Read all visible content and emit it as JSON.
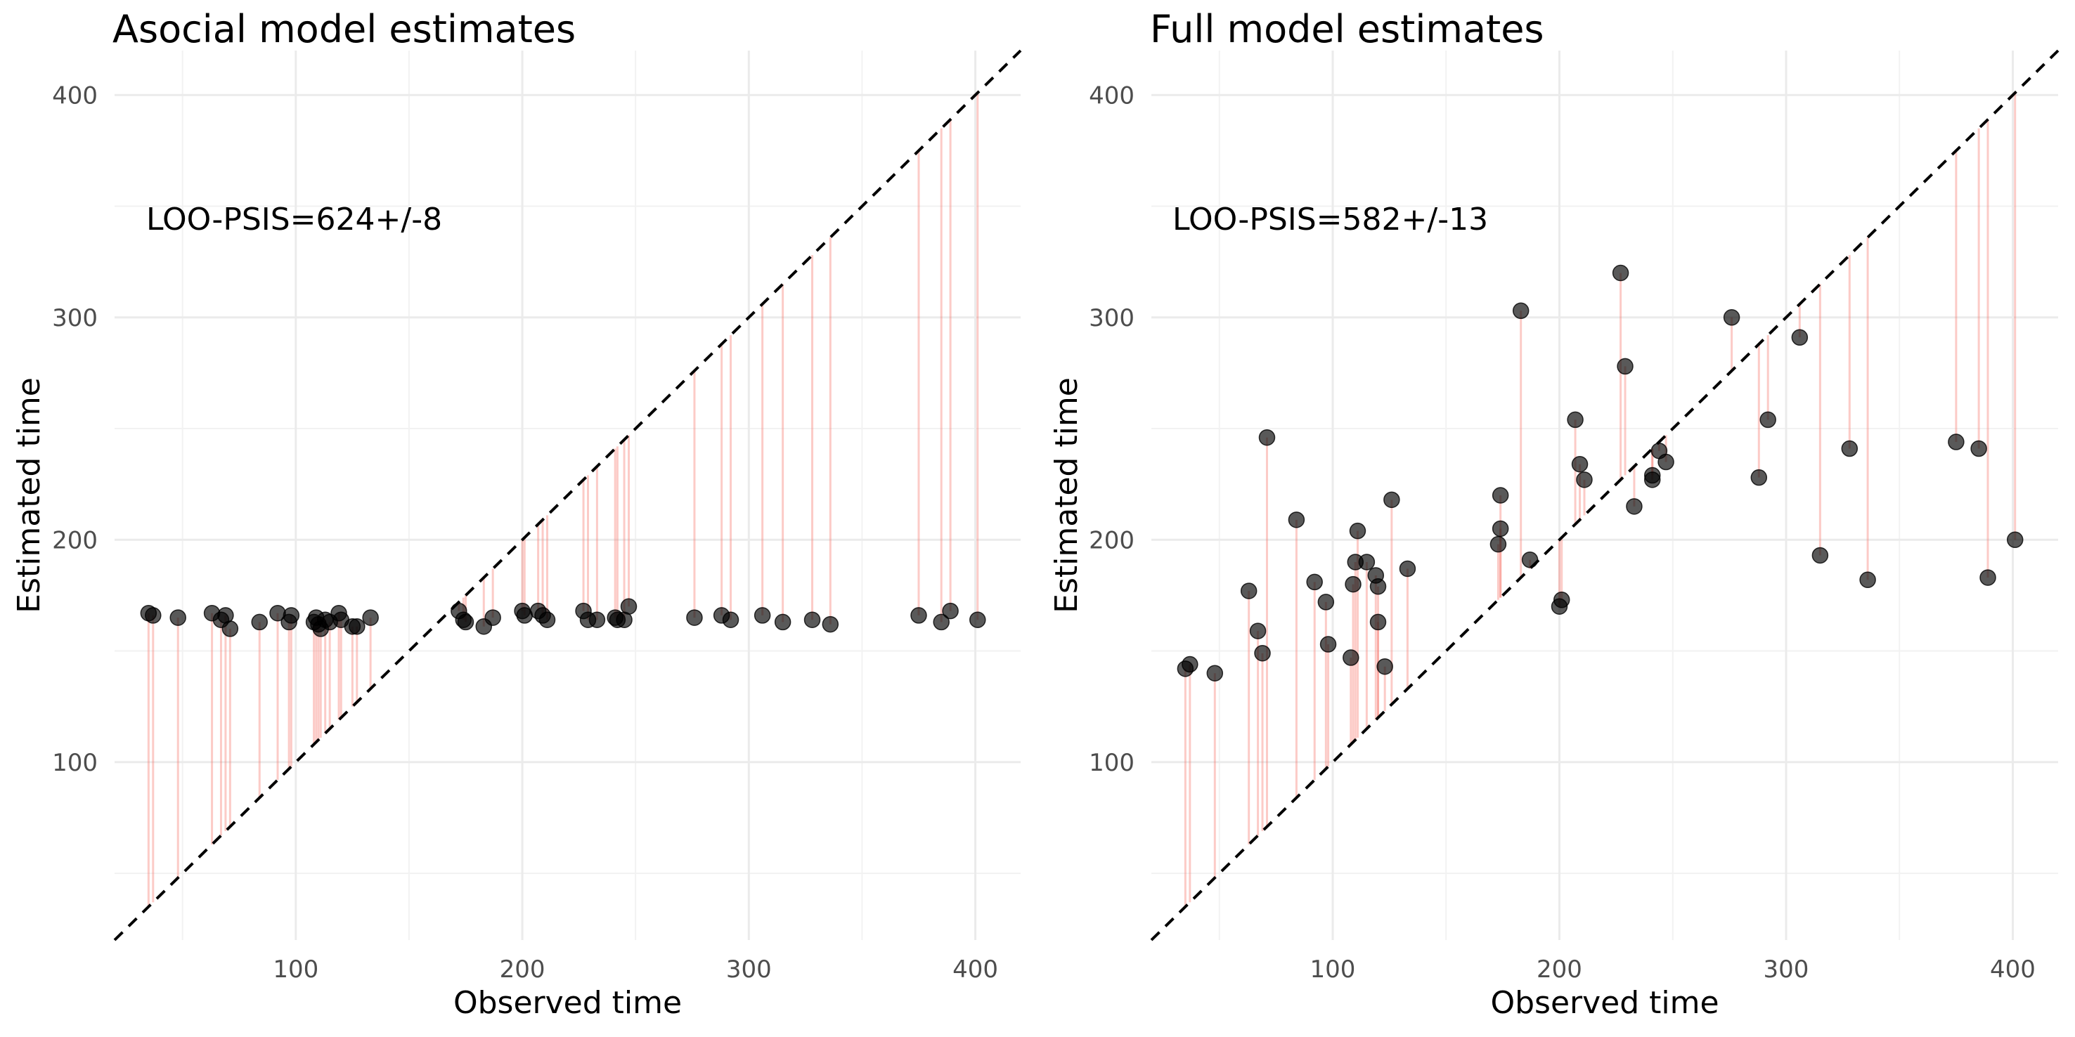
{
  "chart_data": [
    {
      "type": "scatter",
      "title": "Asocial model estimates",
      "xlabel": "Observed time",
      "ylabel": "Estimated time",
      "xlim": [
        20,
        420
      ],
      "ylim": [
        20,
        420
      ],
      "xticks": [
        100,
        200,
        300,
        400
      ],
      "yticks": [
        100,
        200,
        300,
        400
      ],
      "annotation": "LOO-PSIS=624+/-8",
      "reference_line": "y = x",
      "grid": true,
      "points": [
        {
          "x": 35,
          "y": 167
        },
        {
          "x": 37,
          "y": 166
        },
        {
          "x": 48,
          "y": 165
        },
        {
          "x": 63,
          "y": 167
        },
        {
          "x": 67,
          "y": 164
        },
        {
          "x": 69,
          "y": 166
        },
        {
          "x": 71,
          "y": 160
        },
        {
          "x": 84,
          "y": 163
        },
        {
          "x": 92,
          "y": 167
        },
        {
          "x": 97,
          "y": 163
        },
        {
          "x": 98,
          "y": 166
        },
        {
          "x": 108,
          "y": 163
        },
        {
          "x": 109,
          "y": 165
        },
        {
          "x": 110,
          "y": 162
        },
        {
          "x": 111,
          "y": 160
        },
        {
          "x": 113,
          "y": 164
        },
        {
          "x": 115,
          "y": 163
        },
        {
          "x": 119,
          "y": 167
        },
        {
          "x": 120,
          "y": 164
        },
        {
          "x": 125,
          "y": 161
        },
        {
          "x": 127,
          "y": 161
        },
        {
          "x": 133,
          "y": 165
        },
        {
          "x": 172,
          "y": 168
        },
        {
          "x": 174,
          "y": 164
        },
        {
          "x": 175,
          "y": 163
        },
        {
          "x": 183,
          "y": 161
        },
        {
          "x": 187,
          "y": 165
        },
        {
          "x": 200,
          "y": 168
        },
        {
          "x": 201,
          "y": 166
        },
        {
          "x": 207,
          "y": 168
        },
        {
          "x": 209,
          "y": 166
        },
        {
          "x": 211,
          "y": 164
        },
        {
          "x": 227,
          "y": 168
        },
        {
          "x": 229,
          "y": 164
        },
        {
          "x": 233,
          "y": 164
        },
        {
          "x": 241,
          "y": 165
        },
        {
          "x": 242,
          "y": 164
        },
        {
          "x": 245,
          "y": 164
        },
        {
          "x": 247,
          "y": 170
        },
        {
          "x": 276,
          "y": 165
        },
        {
          "x": 288,
          "y": 166
        },
        {
          "x": 292,
          "y": 164
        },
        {
          "x": 306,
          "y": 166
        },
        {
          "x": 315,
          "y": 163
        },
        {
          "x": 328,
          "y": 164
        },
        {
          "x": 336,
          "y": 162
        },
        {
          "x": 375,
          "y": 166
        },
        {
          "x": 385,
          "y": 163
        },
        {
          "x": 389,
          "y": 168
        },
        {
          "x": 401,
          "y": 164
        }
      ]
    },
    {
      "type": "scatter",
      "title": "Full model estimates",
      "xlabel": "Observed time",
      "ylabel": "Estimated time",
      "xlim": [
        20,
        420
      ],
      "ylim": [
        20,
        420
      ],
      "xticks": [
        100,
        200,
        300,
        400
      ],
      "yticks": [
        100,
        200,
        300,
        400
      ],
      "annotation": "LOO-PSIS=582+/-13",
      "reference_line": "y = x",
      "grid": true,
      "points": [
        {
          "x": 35,
          "y": 142
        },
        {
          "x": 37,
          "y": 144
        },
        {
          "x": 48,
          "y": 140
        },
        {
          "x": 63,
          "y": 177
        },
        {
          "x": 67,
          "y": 159
        },
        {
          "x": 69,
          "y": 149
        },
        {
          "x": 71,
          "y": 246
        },
        {
          "x": 84,
          "y": 209
        },
        {
          "x": 92,
          "y": 181
        },
        {
          "x": 97,
          "y": 172
        },
        {
          "x": 98,
          "y": 153
        },
        {
          "x": 108,
          "y": 147
        },
        {
          "x": 109,
          "y": 180
        },
        {
          "x": 110,
          "y": 190
        },
        {
          "x": 111,
          "y": 204
        },
        {
          "x": 115,
          "y": 190
        },
        {
          "x": 119,
          "y": 184
        },
        {
          "x": 120,
          "y": 179
        },
        {
          "x": 120,
          "y": 163
        },
        {
          "x": 123,
          "y": 143
        },
        {
          "x": 126,
          "y": 218
        },
        {
          "x": 133,
          "y": 187
        },
        {
          "x": 173,
          "y": 198
        },
        {
          "x": 174,
          "y": 220
        },
        {
          "x": 174,
          "y": 205
        },
        {
          "x": 183,
          "y": 303
        },
        {
          "x": 187,
          "y": 191
        },
        {
          "x": 200,
          "y": 170
        },
        {
          "x": 201,
          "y": 173
        },
        {
          "x": 207,
          "y": 254
        },
        {
          "x": 209,
          "y": 234
        },
        {
          "x": 211,
          "y": 227
        },
        {
          "x": 227,
          "y": 320
        },
        {
          "x": 229,
          "y": 278
        },
        {
          "x": 233,
          "y": 215
        },
        {
          "x": 241,
          "y": 229
        },
        {
          "x": 241,
          "y": 227
        },
        {
          "x": 244,
          "y": 240
        },
        {
          "x": 247,
          "y": 235
        },
        {
          "x": 276,
          "y": 300
        },
        {
          "x": 288,
          "y": 228
        },
        {
          "x": 292,
          "y": 254
        },
        {
          "x": 306,
          "y": 291
        },
        {
          "x": 315,
          "y": 193
        },
        {
          "x": 328,
          "y": 241
        },
        {
          "x": 336,
          "y": 182
        },
        {
          "x": 375,
          "y": 244
        },
        {
          "x": 385,
          "y": 241
        },
        {
          "x": 389,
          "y": 183
        },
        {
          "x": 401,
          "y": 200
        }
      ]
    }
  ]
}
